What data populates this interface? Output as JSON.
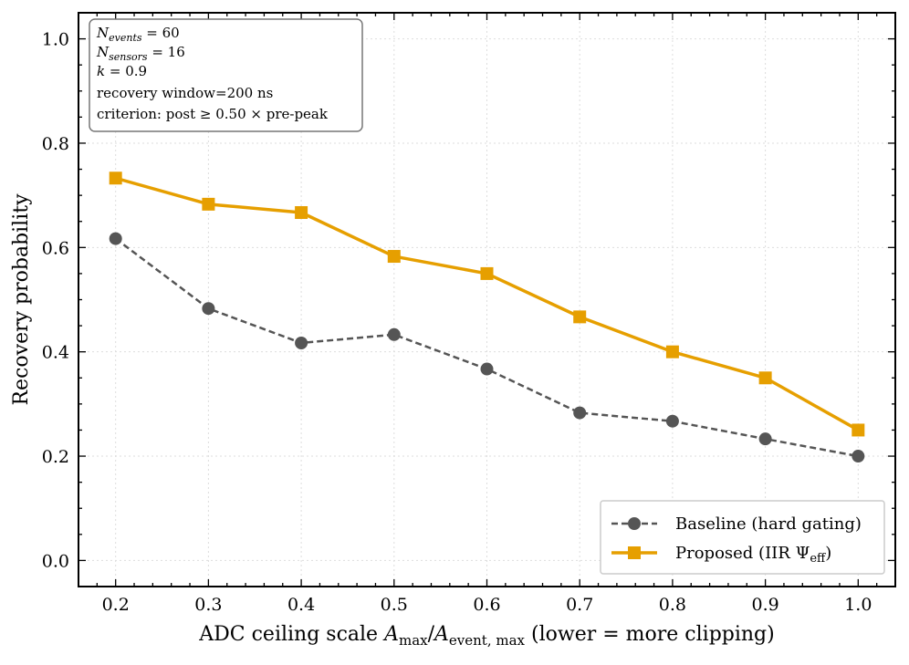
{
  "chart_data": {
    "type": "line",
    "x": [
      0.2,
      0.3,
      0.4,
      0.5,
      0.6,
      0.7,
      0.8,
      0.9,
      1.0
    ],
    "series": [
      {
        "name": "Baseline (hard gating)",
        "values": [
          0.617,
          0.483,
          0.417,
          0.433,
          0.367,
          0.283,
          0.267,
          0.233,
          0.2
        ],
        "color": "#555555",
        "style": "dashed",
        "marker": "circle"
      },
      {
        "name": "Proposed (IIR Ψ_eff)",
        "values": [
          0.733,
          0.683,
          0.667,
          0.583,
          0.55,
          0.467,
          0.4,
          0.35,
          0.25
        ],
        "color": "#E69F00",
        "style": "solid",
        "marker": "square"
      }
    ],
    "xlim": [
      0.16,
      1.04
    ],
    "ylim": [
      -0.05,
      1.05
    ],
    "xticks": [
      "0.2",
      "0.3",
      "0.4",
      "0.5",
      "0.6",
      "0.7",
      "0.8",
      "0.9",
      "1.0"
    ],
    "yticks": [
      "0.0",
      "0.2",
      "0.4",
      "0.6",
      "0.8",
      "1.0"
    ],
    "xlabel": {
      "prefix": "ADC ceiling scale ",
      "var1": "A",
      "sub1": "max",
      "slash": "/",
      "var2": "A",
      "sub2": "event, max",
      "suffix": " (lower = more clipping)"
    },
    "ylabel": "Recovery probability",
    "grid": true,
    "legend": {
      "position": "lower-right",
      "entries": [
        {
          "label": "Baseline (hard gating)"
        },
        {
          "label_main": "Proposed (IIR Ψ",
          "label_sub": "eff",
          "label_end": ")"
        }
      ]
    },
    "annotation": {
      "position": "top-left",
      "lines": [
        {
          "var": "N",
          "sub": "events",
          "rest": " = 60"
        },
        {
          "var": "N",
          "sub": "sensors",
          "rest": " = 16"
        },
        {
          "var": "k",
          "sub": "",
          "rest": " = 0.9"
        },
        {
          "text": "recovery window=200 ns"
        },
        {
          "text": "criterion: post ≥ 0.50 × pre-peak"
        }
      ]
    }
  }
}
